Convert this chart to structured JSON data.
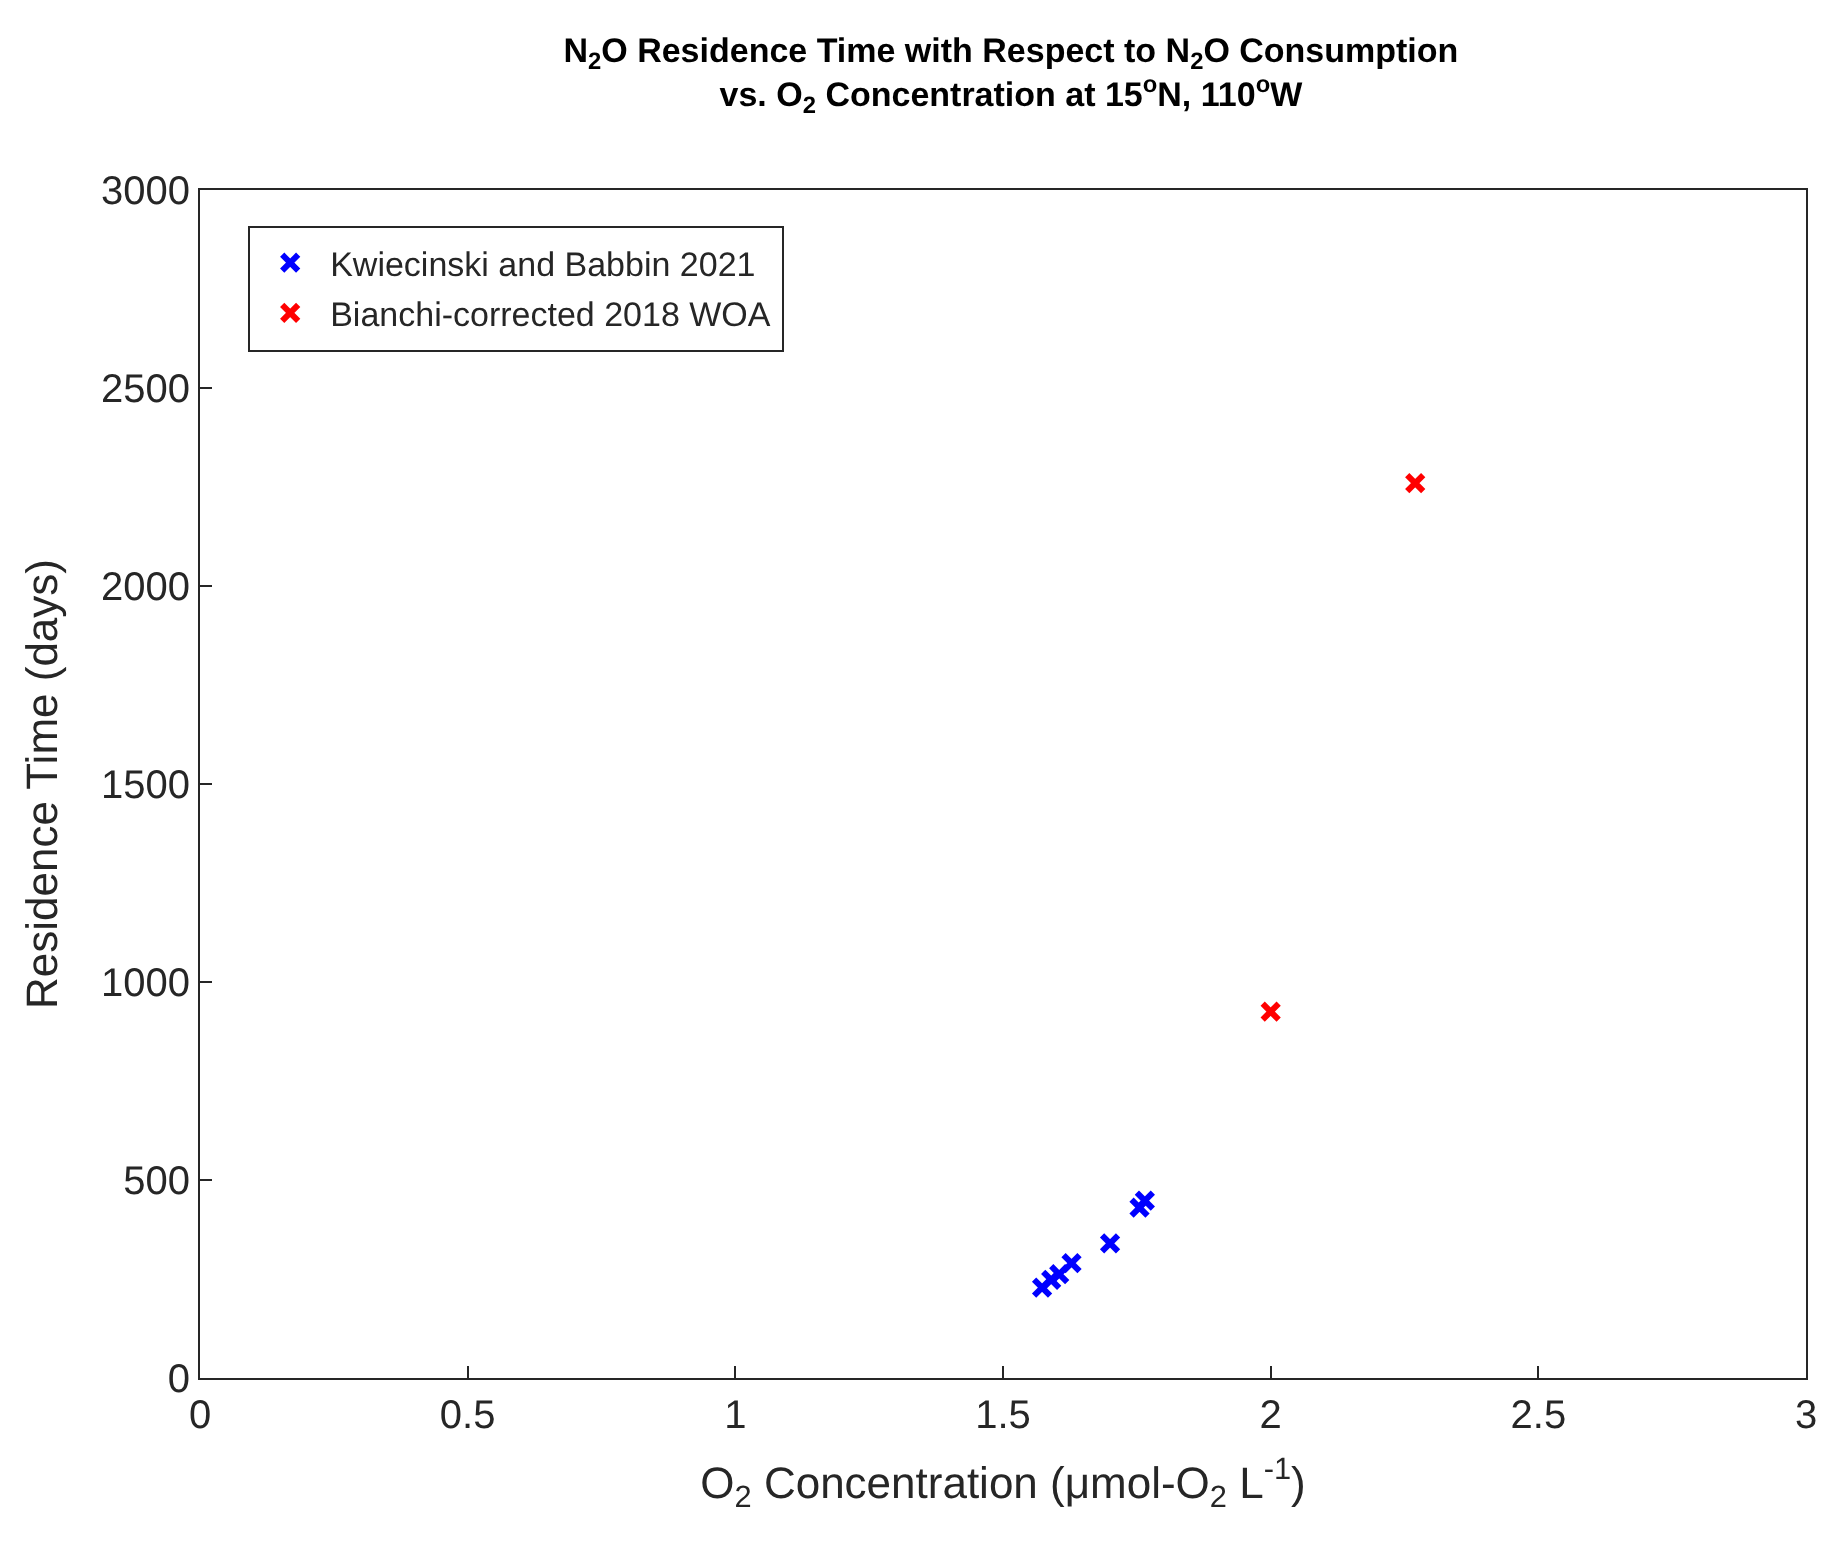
{
  "chart_data": {
    "type": "scatter",
    "title": "N$_{2}$O Residence Time with Respect to N$_{2}$O Consumption\nvs. O$_{2}$ Concentration at 15$^{o}$N, 110$^{o}$W",
    "xlabel": "O$_{2}$ Concentration (μmol-O$_{2}$ L$^{-1}$)",
    "ylabel": "Residence Time (days)",
    "series": [
      {
        "name": "Kwiecinski and Babbin 2021",
        "color": "#0000ff",
        "x": [
          1.573,
          1.59,
          1.605,
          1.628,
          1.7,
          1.755,
          1.765
        ],
        "values": [
          228,
          248,
          262,
          290,
          340,
          430,
          448
        ]
      },
      {
        "name": "Bianchi-corrected 2018 WOA",
        "color": "#ff0000",
        "x": [
          2.0,
          2.27
        ],
        "values": [
          925,
          2260
        ]
      }
    ],
    "xlim": [
      0,
      3
    ],
    "xticks": [
      0,
      0.5,
      1,
      1.5,
      2,
      2.5,
      3
    ],
    "ylim": [
      0,
      3000
    ],
    "yticks": [
      0,
      500,
      1000,
      1500,
      2000,
      2500,
      3000
    ],
    "marker": "cross",
    "legend": "top left"
  }
}
